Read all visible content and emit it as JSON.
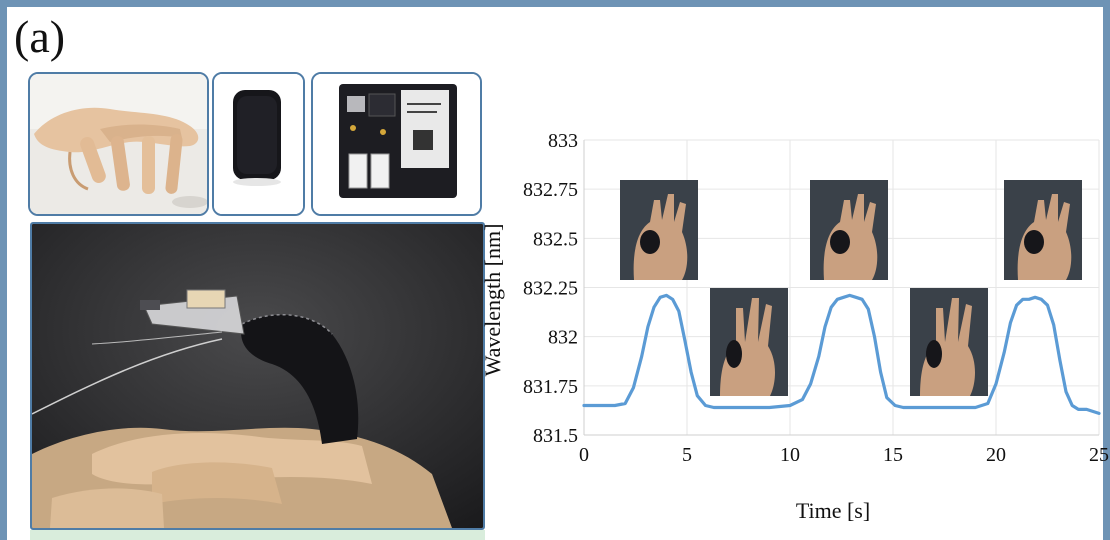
{
  "figure": {
    "panel_label": "(a)"
  },
  "chart_data": {
    "type": "line",
    "title": "",
    "xlabel": "Time [s]",
    "ylabel": "Wavelength [nm]",
    "xlim": [
      0,
      25
    ],
    "ylim": [
      831.5,
      833
    ],
    "x_ticks": [
      "0",
      "5",
      "10",
      "15",
      "20",
      "25"
    ],
    "y_ticks": [
      "831.5",
      "831.75",
      "832",
      "832.25",
      "832.5",
      "832.75",
      "833"
    ],
    "grid": true,
    "series": [
      {
        "color": "#5b9bd5",
        "x": [
          0,
          0.5,
          1,
          1.5,
          2,
          2.4,
          2.8,
          3.1,
          3.4,
          3.7,
          4.0,
          4.3,
          4.6,
          4.9,
          5.2,
          5.5,
          5.9,
          6.3,
          7,
          8,
          9,
          10,
          10.6,
          11.0,
          11.4,
          11.7,
          12.0,
          12.3,
          12.6,
          12.9,
          13.2,
          13.5,
          13.8,
          14.1,
          14.4,
          14.7,
          15.1,
          15.5,
          16,
          17,
          18,
          19,
          19.6,
          20.0,
          20.4,
          20.7,
          21.0,
          21.3,
          21.6,
          21.9,
          22.2,
          22.5,
          22.8,
          23.1,
          23.4,
          23.7,
          24.0,
          24.4,
          25
        ],
        "y": [
          831.65,
          831.65,
          831.65,
          831.65,
          831.66,
          831.74,
          831.9,
          832.05,
          832.15,
          832.2,
          832.21,
          832.19,
          832.13,
          831.98,
          831.82,
          831.7,
          831.65,
          831.64,
          831.64,
          831.64,
          831.64,
          831.65,
          831.68,
          831.76,
          831.9,
          832.05,
          832.15,
          832.19,
          832.2,
          832.21,
          832.2,
          832.19,
          832.14,
          832.0,
          831.82,
          831.69,
          831.65,
          831.64,
          831.64,
          831.64,
          831.64,
          831.64,
          831.66,
          831.76,
          831.92,
          832.07,
          832.16,
          832.19,
          832.19,
          832.2,
          832.19,
          832.16,
          832.06,
          831.88,
          831.72,
          831.65,
          831.63,
          831.63,
          831.61
        ]
      }
    ]
  }
}
